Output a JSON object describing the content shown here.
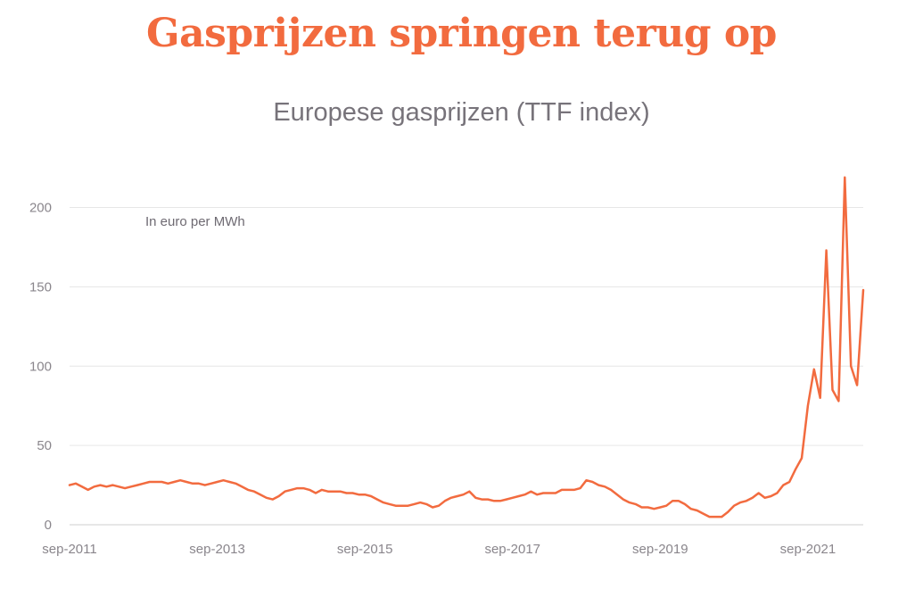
{
  "headline": "Gasprijzen springen terug op",
  "colors": {
    "accent": "#f26b3f",
    "grid": "#e6e6e6",
    "text_muted": "#8a868c"
  },
  "chart_data": {
    "type": "line",
    "title": "Europese gasprijzen (TTF index)",
    "annotation": "In euro per MWh",
    "xlabel": "",
    "ylabel": "",
    "ylim": [
      0,
      220
    ],
    "yticks": [
      0,
      50,
      100,
      150,
      200
    ],
    "xlim": [
      "2011-09",
      "2022-06"
    ],
    "xtick_labels": [
      "sep-2011",
      "sep-2013",
      "sep-2015",
      "sep-2017",
      "sep-2019",
      "sep-2021"
    ],
    "grid": true,
    "series": [
      {
        "color": "#f26b3f",
        "points": [
          [
            "2011-09",
            25
          ],
          [
            "2011-10",
            26
          ],
          [
            "2011-11",
            24
          ],
          [
            "2011-12",
            22
          ],
          [
            "2012-01",
            24
          ],
          [
            "2012-02",
            25
          ],
          [
            "2012-03",
            24
          ],
          [
            "2012-04",
            25
          ],
          [
            "2012-05",
            24
          ],
          [
            "2012-06",
            23
          ],
          [
            "2012-07",
            24
          ],
          [
            "2012-08",
            25
          ],
          [
            "2012-09",
            26
          ],
          [
            "2012-10",
            27
          ],
          [
            "2012-11",
            27
          ],
          [
            "2012-12",
            27
          ],
          [
            "2013-01",
            26
          ],
          [
            "2013-02",
            27
          ],
          [
            "2013-03",
            28
          ],
          [
            "2013-04",
            27
          ],
          [
            "2013-05",
            26
          ],
          [
            "2013-06",
            26
          ],
          [
            "2013-07",
            25
          ],
          [
            "2013-08",
            26
          ],
          [
            "2013-09",
            27
          ],
          [
            "2013-10",
            28
          ],
          [
            "2013-11",
            27
          ],
          [
            "2013-12",
            26
          ],
          [
            "2014-01",
            24
          ],
          [
            "2014-02",
            22
          ],
          [
            "2014-03",
            21
          ],
          [
            "2014-04",
            19
          ],
          [
            "2014-05",
            17
          ],
          [
            "2014-06",
            16
          ],
          [
            "2014-07",
            18
          ],
          [
            "2014-08",
            21
          ],
          [
            "2014-09",
            22
          ],
          [
            "2014-10",
            23
          ],
          [
            "2014-11",
            23
          ],
          [
            "2014-12",
            22
          ],
          [
            "2015-01",
            20
          ],
          [
            "2015-02",
            22
          ],
          [
            "2015-03",
            21
          ],
          [
            "2015-04",
            21
          ],
          [
            "2015-05",
            21
          ],
          [
            "2015-06",
            20
          ],
          [
            "2015-07",
            20
          ],
          [
            "2015-08",
            19
          ],
          [
            "2015-09",
            19
          ],
          [
            "2015-10",
            18
          ],
          [
            "2015-11",
            16
          ],
          [
            "2015-12",
            14
          ],
          [
            "2016-01",
            13
          ],
          [
            "2016-02",
            12
          ],
          [
            "2016-03",
            12
          ],
          [
            "2016-04",
            12
          ],
          [
            "2016-05",
            13
          ],
          [
            "2016-06",
            14
          ],
          [
            "2016-07",
            13
          ],
          [
            "2016-08",
            11
          ],
          [
            "2016-09",
            12
          ],
          [
            "2016-10",
            15
          ],
          [
            "2016-11",
            17
          ],
          [
            "2016-12",
            18
          ],
          [
            "2017-01",
            19
          ],
          [
            "2017-02",
            21
          ],
          [
            "2017-03",
            17
          ],
          [
            "2017-04",
            16
          ],
          [
            "2017-05",
            16
          ],
          [
            "2017-06",
            15
          ],
          [
            "2017-07",
            15
          ],
          [
            "2017-08",
            16
          ],
          [
            "2017-09",
            17
          ],
          [
            "2017-10",
            18
          ],
          [
            "2017-11",
            19
          ],
          [
            "2017-12",
            21
          ],
          [
            "2018-01",
            19
          ],
          [
            "2018-02",
            20
          ],
          [
            "2018-03",
            20
          ],
          [
            "2018-04",
            20
          ],
          [
            "2018-05",
            22
          ],
          [
            "2018-06",
            22
          ],
          [
            "2018-07",
            22
          ],
          [
            "2018-08",
            23
          ],
          [
            "2018-09",
            28
          ],
          [
            "2018-10",
            27
          ],
          [
            "2018-11",
            25
          ],
          [
            "2018-12",
            24
          ],
          [
            "2019-01",
            22
          ],
          [
            "2019-02",
            19
          ],
          [
            "2019-03",
            16
          ],
          [
            "2019-04",
            14
          ],
          [
            "2019-05",
            13
          ],
          [
            "2019-06",
            11
          ],
          [
            "2019-07",
            11
          ],
          [
            "2019-08",
            10
          ],
          [
            "2019-09",
            11
          ],
          [
            "2019-10",
            12
          ],
          [
            "2019-11",
            15
          ],
          [
            "2019-12",
            15
          ],
          [
            "2020-01",
            13
          ],
          [
            "2020-02",
            10
          ],
          [
            "2020-03",
            9
          ],
          [
            "2020-04",
            7
          ],
          [
            "2020-05",
            5
          ],
          [
            "2020-06",
            5
          ],
          [
            "2020-07",
            5
          ],
          [
            "2020-08",
            8
          ],
          [
            "2020-09",
            12
          ],
          [
            "2020-10",
            14
          ],
          [
            "2020-11",
            15
          ],
          [
            "2020-12",
            17
          ],
          [
            "2021-01",
            20
          ],
          [
            "2021-02",
            17
          ],
          [
            "2021-03",
            18
          ],
          [
            "2021-04",
            20
          ],
          [
            "2021-05",
            25
          ],
          [
            "2021-06",
            27
          ],
          [
            "2021-07",
            35
          ],
          [
            "2021-08",
            42
          ],
          [
            "2021-09",
            75
          ],
          [
            "2021-10",
            98
          ],
          [
            "2021-11",
            80
          ],
          [
            "2021-12",
            173
          ],
          [
            "2022-01",
            85
          ],
          [
            "2022-02",
            78
          ],
          [
            "2022-03",
            219
          ],
          [
            "2022-04",
            100
          ],
          [
            "2022-05",
            88
          ],
          [
            "2022-06",
            148
          ]
        ]
      }
    ]
  }
}
